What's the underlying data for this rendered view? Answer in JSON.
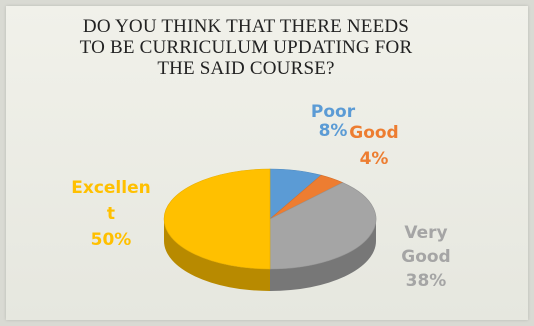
{
  "chart_data": {
    "type": "pie",
    "title_lines": [
      "DO YOU THINK THAT THERE NEEDS",
      "TO BE CURRICULUM UPDATING FOR",
      "THE SAID COURSE?"
    ],
    "slices": [
      {
        "label_lines": [
          "Poor"
        ],
        "pct_text": "8%",
        "value": 8,
        "color": "#5b9bd5"
      },
      {
        "label_lines": [
          "Good"
        ],
        "pct_text": "4%",
        "value": 4,
        "color": "#ed7d31"
      },
      {
        "label_lines": [
          "Very",
          "Good"
        ],
        "pct_text": "38%",
        "value": 38,
        "color": "#a5a5a5"
      },
      {
        "label_lines": [
          "Excellen",
          "t"
        ],
        "pct_text": "50%",
        "value": 50,
        "color": "#ffc000"
      }
    ],
    "legend": "none",
    "data_labels": "outside"
  }
}
